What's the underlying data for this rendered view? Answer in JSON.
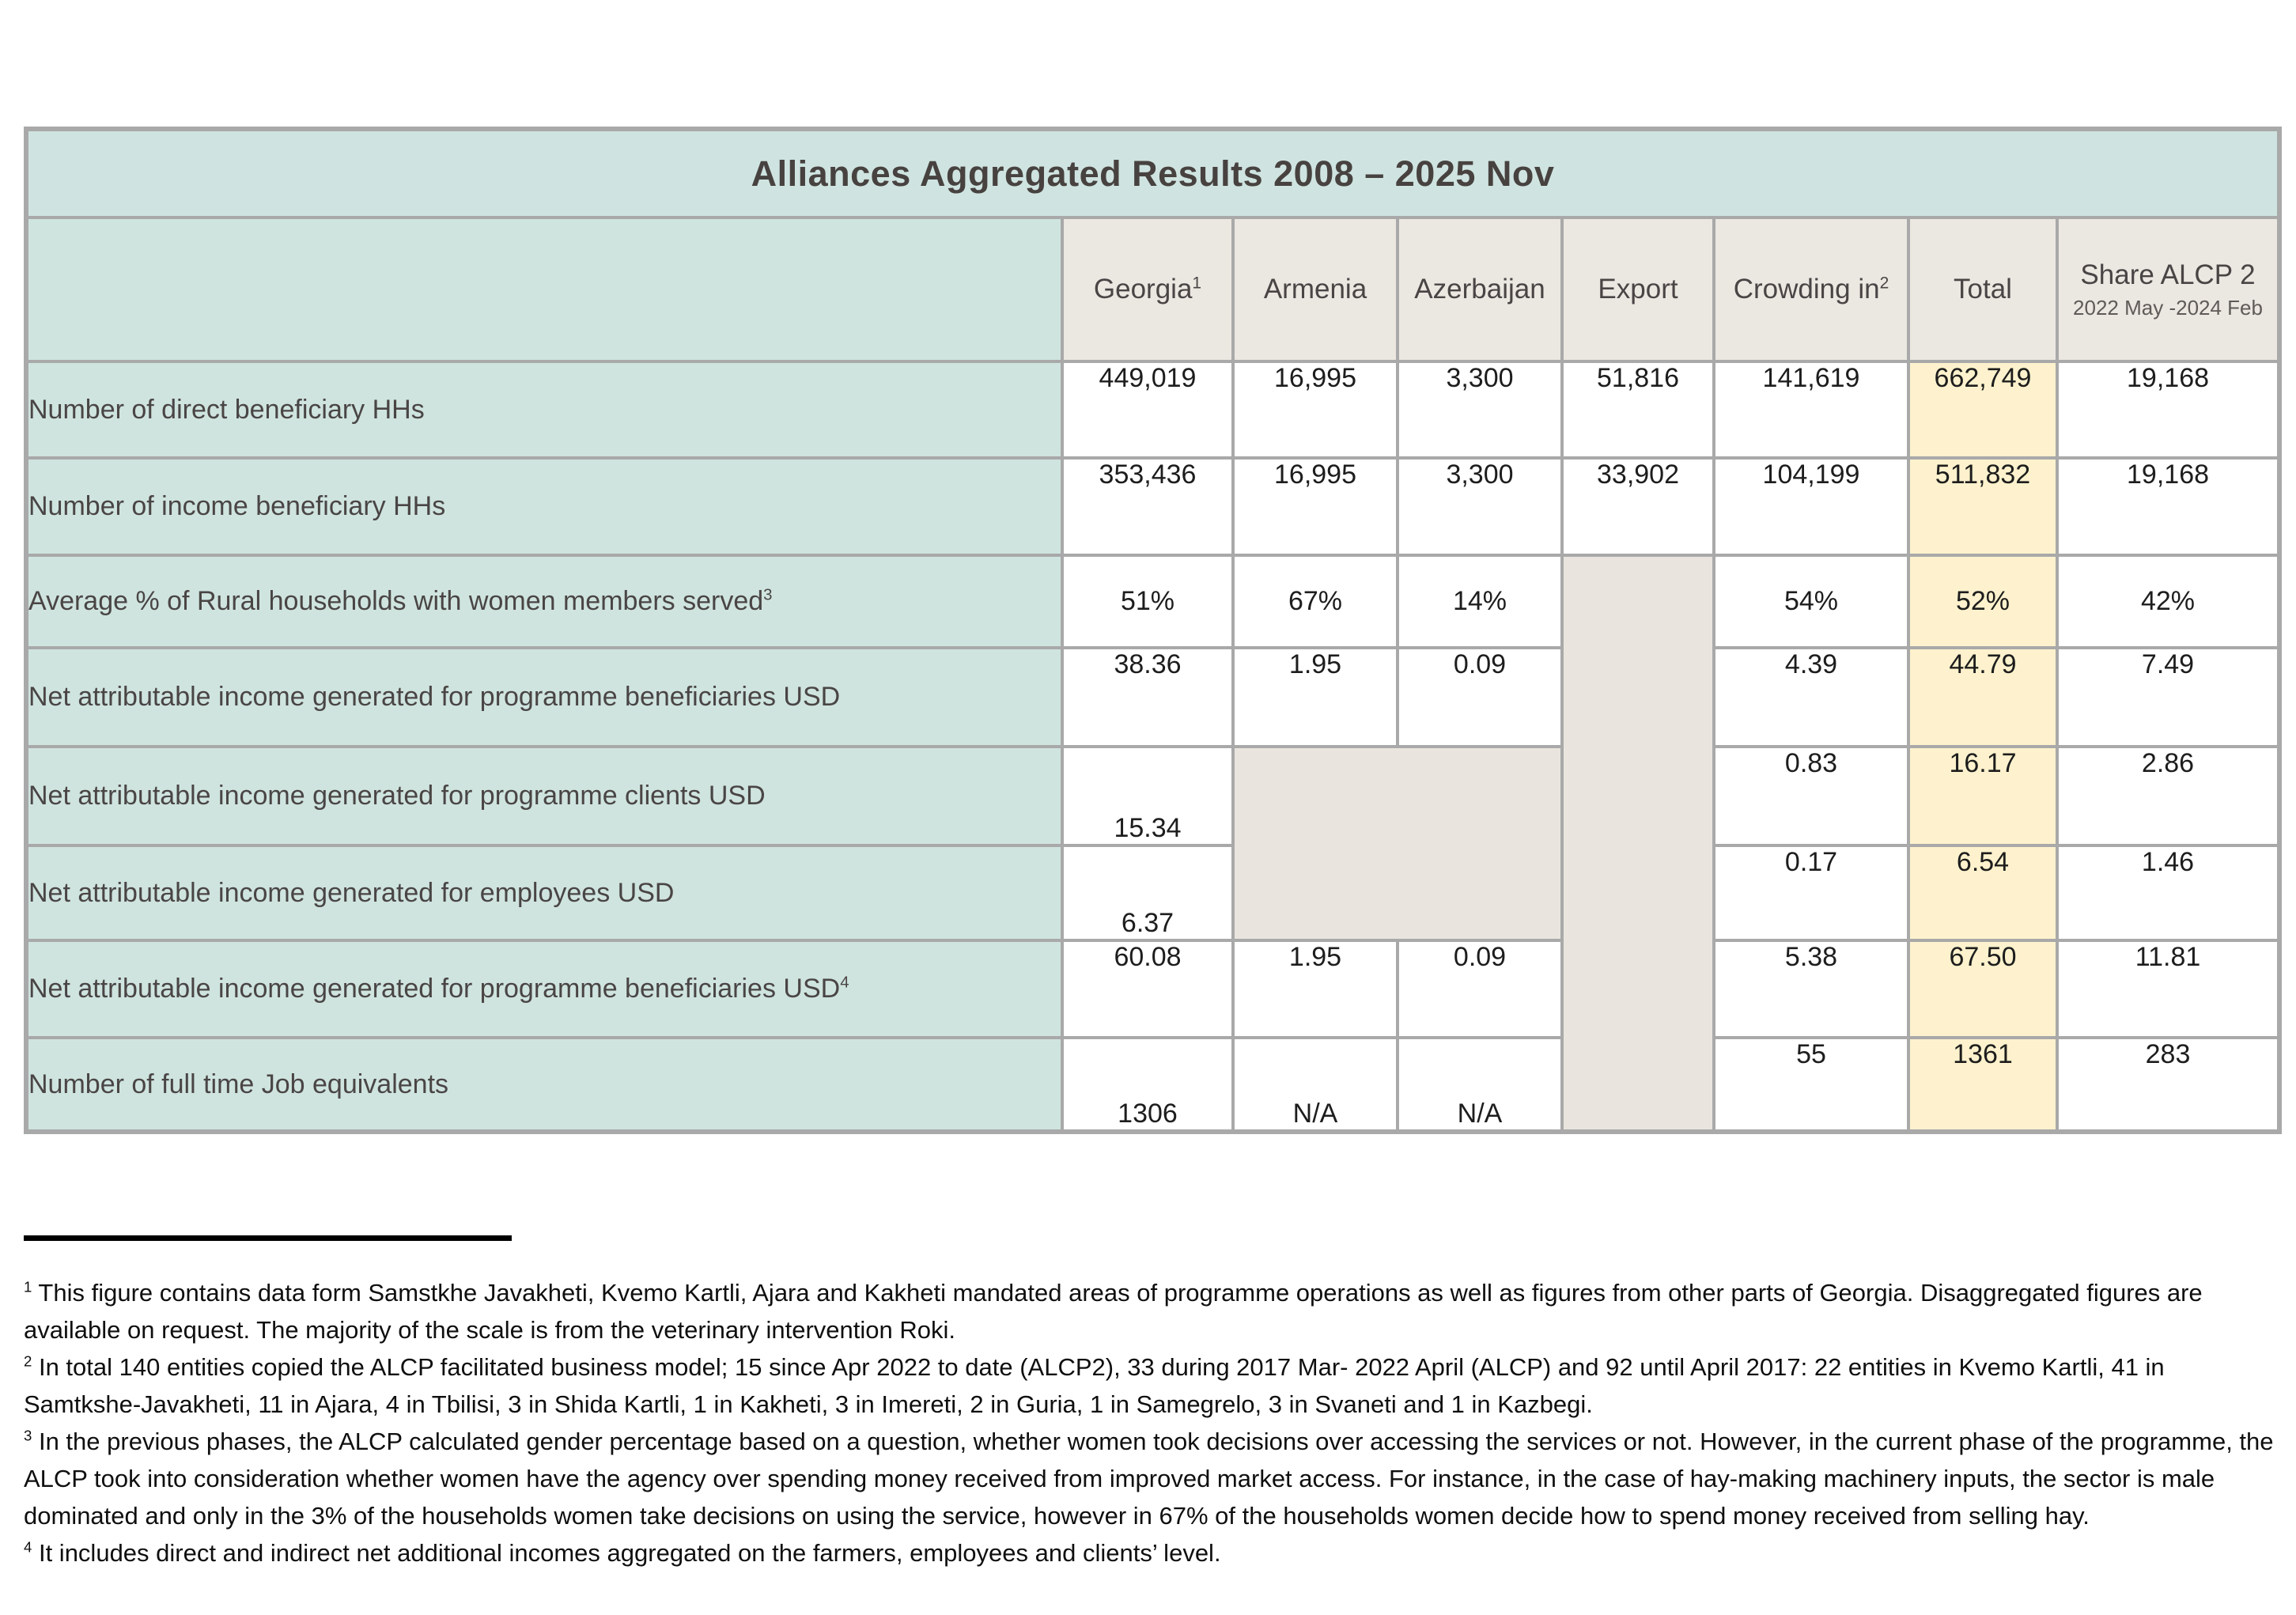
{
  "title": "Alliances Aggregated Results 2008 – 2025 Nov",
  "header": {
    "georgia": {
      "label": "Georgia",
      "sup": "1"
    },
    "armenia": {
      "label": "Armenia"
    },
    "azerbaijan": {
      "label": "Azerbaijan"
    },
    "export": {
      "label": "Export"
    },
    "crowding": {
      "label": "Crowding in",
      "sup": "2"
    },
    "total": {
      "label": "Total"
    },
    "share": {
      "label": "Share ALCP 2",
      "subtitle": "2022 May -2024 Feb"
    }
  },
  "rows": [
    {
      "label": "Number of direct beneficiary HHs",
      "georgia": "449,019",
      "armenia": "16,995",
      "azerbaijan": "3,300",
      "export": "51,816",
      "crowding": "141,619",
      "total": "662,749",
      "share": "19,168"
    },
    {
      "label": "Number of income beneficiary HHs",
      "georgia": "353,436",
      "armenia": "16,995",
      "azerbaijan": "3,300",
      "export": "33,902",
      "crowding": "104,199",
      "total": "511,832",
      "share": "19,168"
    },
    {
      "label": "Average % of Rural households with women members served",
      "label_sup": "3",
      "georgia": "51%",
      "armenia": "67%",
      "azerbaijan": "14%",
      "crowding": "54%",
      "total": "52%",
      "share": "42%"
    },
    {
      "label": "Net attributable income generated for programme beneficiaries USD",
      "georgia": "38.36",
      "armenia": "1.95",
      "azerbaijan": "0.09",
      "crowding": "4.39",
      "total": "44.79",
      "share": "7.49"
    },
    {
      "label": "Net attributable income generated for programme clients USD",
      "georgia": "15.34",
      "crowding": "0.83",
      "total": "16.17",
      "share": "2.86"
    },
    {
      "label": "Net attributable income generated for employees USD",
      "georgia": "6.37",
      "crowding": "0.17",
      "total": "6.54",
      "share": "1.46"
    },
    {
      "label": "Net attributable income generated for programme beneficiaries USD",
      "label_sup": "4",
      "georgia": "60.08",
      "armenia": "1.95",
      "azerbaijan": "0.09",
      "crowding": "5.38",
      "total": "67.50",
      "share": "11.81"
    },
    {
      "label": "Number of full time Job equivalents",
      "georgia": "1306",
      "armenia": "N/A",
      "azerbaijan": "N/A",
      "crowding": "55",
      "total": "1361",
      "share": "283"
    }
  ],
  "footnotes": [
    {
      "marker": "1",
      "text": "This figure contains data form Samstkhe Javakheti, Kvemo Kartli, Ajara and Kakheti mandated areas of programme operations as well as figures from other parts of Georgia. Disaggregated figures are available on request. The majority of the scale is from the veterinary intervention Roki."
    },
    {
      "marker": "2",
      "text": "In total 140 entities copied the ALCP facilitated business model; 15 since Apr 2022 to date (ALCP2), 33 during 2017 Mar- 2022  April (ALCP) and 92 until April 2017: 22 entities in Kvemo Kartli, 41 in Samtkshe-Javakheti, 11 in Ajara, 4 in Tbilisi, 3 in Shida Kartli, 1 in Kakheti, 3 in Imereti, 2 in Guria, 1 in Samegrelo, 3 in Svaneti and 1 in Kazbegi."
    },
    {
      "marker": "3",
      "text": "In the previous phases, the ALCP calculated gender percentage based on a question, whether women took decisions over accessing the services or not. However, in the current phase of the programme, the ALCP took into consideration whether women have the agency over spending money received from improved market access. For instance, in the case of hay-making machinery inputs, the sector is male dominated and only in the 3% of the households women take decisions on using the service, however in 67% of the households women decide how to spend money received from selling hay."
    },
    {
      "marker": "4",
      "text": "It includes direct and indirect net additional incomes aggregated on the farmers, employees and clients’ level."
    }
  ],
  "colors": {
    "teal_header": "#cfe4e0",
    "teal_label_column": "#cfe4df",
    "beige_column_header": "#ebe7e1",
    "beige_merged_shaded": "#e9e5de",
    "yellow_total_column": "#fdf2cd",
    "border_gray": "#a9a9a9",
    "title_text": "#474240",
    "label_text": "#4a4545",
    "value_text": "#1d1d1d"
  }
}
